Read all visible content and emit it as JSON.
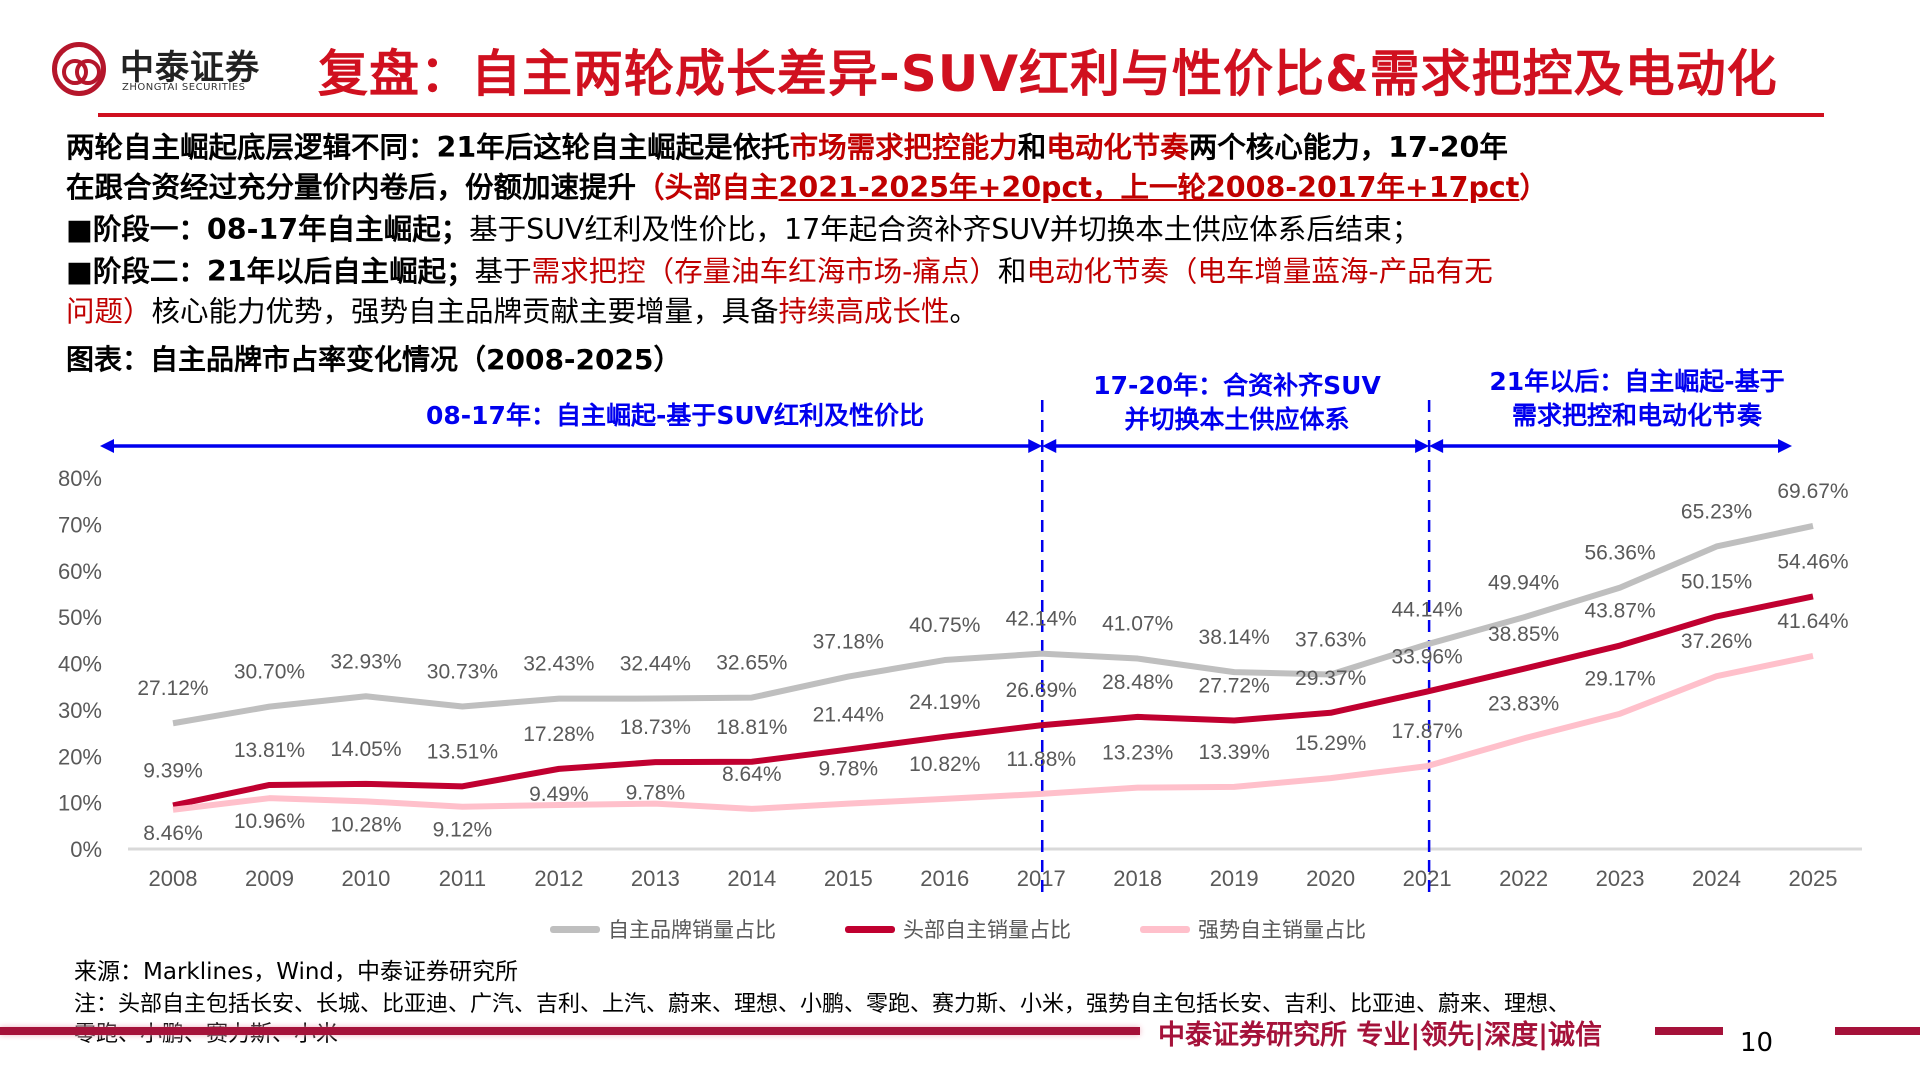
{
  "logo": {
    "name_cn": "中泰证券",
    "name_en": "ZHONGTAI SECURITIES"
  },
  "title": "复盘：自主两轮成长差异-SUV红利与性价比&需求把控及电动化",
  "body": {
    "lines": [
      [
        {
          "text": "两轮自主崛起底层逻辑不同：21年后这轮自主崛起是依托",
          "style": "b"
        },
        {
          "text": "市场需求把控能力",
          "style": "b red"
        },
        {
          "text": "和",
          "style": "b"
        },
        {
          "text": "电动化节奏",
          "style": "b red"
        },
        {
          "text": "两个核心能力，17-20年",
          "style": "b"
        }
      ],
      [
        {
          "text": "在跟合资经过充分量价内卷后，份额加速提升",
          "style": "b"
        },
        {
          "text": "（头部自主",
          "style": "b red"
        },
        {
          "text": "2021-2025年+20pct，上一轮2008-2017年+17pct",
          "style": "b red ul"
        },
        {
          "text": "）",
          "style": "b red"
        }
      ],
      [
        {
          "text": "■阶段一：08-17年自主崛起；",
          "style": "b"
        },
        {
          "text": "基于SUV红利及性价比，17年起合资补齐SUV并切换本土供应体系后结束；",
          "style": ""
        }
      ],
      [
        {
          "text": "■阶段二：21年以后自主崛起；",
          "style": "b"
        },
        {
          "text": "基于",
          "style": ""
        },
        {
          "text": "需求把控（存量油车红海市场-痛点）",
          "style": "red"
        },
        {
          "text": "和",
          "style": ""
        },
        {
          "text": "电动化节奏（电车增量蓝海-产品有无",
          "style": "red"
        }
      ],
      [
        {
          "text": "问题）",
          "style": "red"
        },
        {
          "text": "核心能力优势，强势自主品牌贡献主要增量，具备",
          "style": ""
        },
        {
          "text": "持续高成长性",
          "style": "red"
        },
        {
          "text": "。",
          "style": ""
        }
      ]
    ]
  },
  "caption": "图表：自主品牌市占率变化情况（2008-2025）",
  "annotations": {
    "phase1": "08-17年：自主崛起-基于SUV红利及性价比",
    "phase2_line1": "17-20年：合资补齐SUV",
    "phase2_line2": "并切换本土供应体系",
    "phase3_line1": "21年以后：自主崛起-基于",
    "phase3_line2": "需求把控和电动化节奏",
    "color": "#0000ee"
  },
  "chart_data": {
    "type": "line",
    "categories": [
      "2008",
      "2009",
      "2010",
      "2011",
      "2012",
      "2013",
      "2014",
      "2015",
      "2016",
      "2017",
      "2018",
      "2019",
      "2020",
      "2021",
      "2022",
      "2023",
      "2024",
      "2025"
    ],
    "ylim": [
      0,
      80
    ],
    "yticks": [
      "0%",
      "10%",
      "20%",
      "30%",
      "40%",
      "50%",
      "60%",
      "70%",
      "80%"
    ],
    "grid": false,
    "legend_position": "bottom",
    "series": [
      {
        "name": "自主品牌销量占比",
        "color": "#bfbfbf",
        "values": [
          27.12,
          30.7,
          32.93,
          30.73,
          32.43,
          32.44,
          32.65,
          37.18,
          40.75,
          42.14,
          41.07,
          38.14,
          37.63,
          44.14,
          49.94,
          56.36,
          65.23,
          69.67
        ],
        "labels": [
          "27.12%",
          "30.70%",
          "32.93%",
          "30.73%",
          "32.43%",
          "32.44%",
          "32.65%",
          "37.18%",
          "40.75%",
          "42.14%",
          "41.07%",
          "38.14%",
          "37.63%",
          "44.14%",
          "49.94%",
          "56.36%",
          "65.23%",
          "69.67%"
        ]
      },
      {
        "name": "头部自主销量占比",
        "color": "#c00030",
        "values": [
          9.39,
          13.81,
          14.05,
          13.51,
          17.28,
          18.73,
          18.81,
          21.44,
          24.19,
          26.69,
          28.48,
          27.72,
          29.37,
          33.96,
          38.85,
          43.87,
          50.15,
          54.46
        ],
        "labels": [
          "9.39%",
          "13.81%",
          "14.05%",
          "13.51%",
          "17.28%",
          "18.73%",
          "18.81%",
          "21.44%",
          "24.19%",
          "26.69%",
          "28.48%",
          "27.72%",
          "29.37%",
          "33.96%",
          "38.85%",
          "43.87%",
          "50.15%",
          "54.46%"
        ]
      },
      {
        "name": "强势自主销量占比",
        "color": "#ffc0cb",
        "values": [
          8.46,
          10.96,
          10.28,
          9.12,
          9.49,
          9.78,
          8.64,
          9.78,
          10.82,
          11.88,
          13.23,
          13.39,
          15.29,
          17.87,
          23.83,
          29.17,
          37.26,
          41.64
        ],
        "labels": [
          "8.46%",
          "10.96%",
          "10.28%",
          "9.12%",
          "9.49%",
          "9.78%",
          "8.64%",
          "9.78%",
          "10.82%",
          "11.88%",
          "13.23%",
          "13.39%",
          "15.29%",
          "17.87%",
          "23.83%",
          "29.17%",
          "37.26%",
          "41.64%"
        ]
      }
    ],
    "phase_dividers": [
      "2017",
      "2021"
    ]
  },
  "source": "来源：Marklines，Wind，中泰证券研究所",
  "note_line1": "注：头部自主包括长安、长城、比亚迪、广汽、吉利、上汽、蔚来、理想、小鹏、零跑、赛力斯、小米，强势自主包括长安、吉利、比亚迪、蔚来、理想、",
  "note_line2": "零跑、小鹏、赛力斯、小米",
  "footer": {
    "slogan": "中泰证券研究所 专业|领先|深度|诚信",
    "page": "10",
    "color": "#a5123a"
  }
}
